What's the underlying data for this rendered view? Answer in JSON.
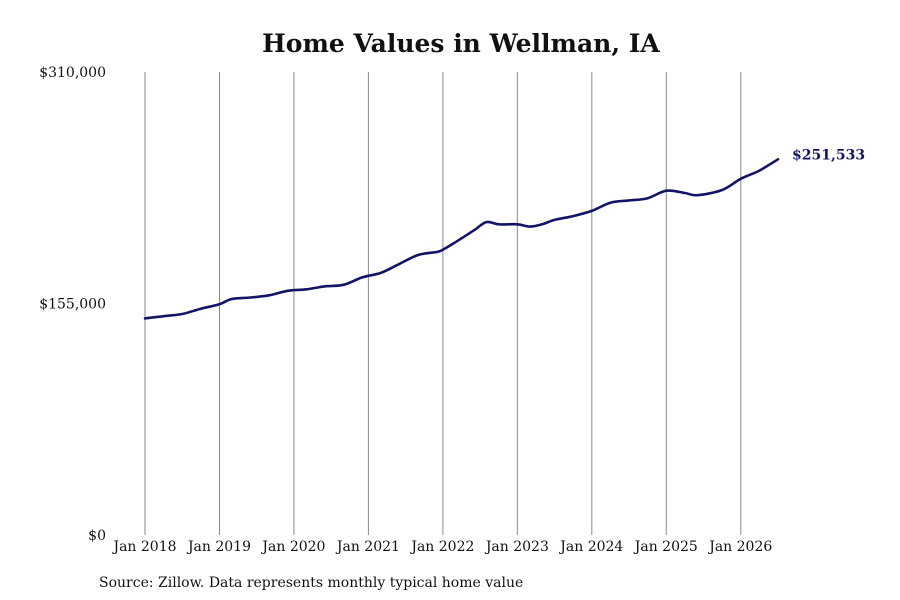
{
  "chart_data": {
    "type": "line",
    "title": "Home Values in Wellman, IA",
    "xlabel": "",
    "ylabel": "",
    "source_note": "Source: Zillow. Data represents monthly typical home value",
    "grid": "vertical",
    "ylim": [
      0,
      310000
    ],
    "xlim": [
      "2018-01",
      "2026-07"
    ],
    "y_ticks": [
      {
        "value": 0,
        "label": "$0"
      },
      {
        "value": 155000,
        "label": "$155,000"
      },
      {
        "value": 310000,
        "label": "$310,000"
      }
    ],
    "x_ticks": [
      {
        "value": "2018-01",
        "label": "Jan 2018"
      },
      {
        "value": "2019-01",
        "label": "Jan 2019"
      },
      {
        "value": "2020-01",
        "label": "Jan 2020"
      },
      {
        "value": "2021-01",
        "label": "Jan 2021"
      },
      {
        "value": "2022-01",
        "label": "Jan 2022"
      },
      {
        "value": "2023-01",
        "label": "Jan 2023"
      },
      {
        "value": "2024-01",
        "label": "Jan 2024"
      },
      {
        "value": "2025-01",
        "label": "Jan 2025"
      },
      {
        "value": "2026-01",
        "label": "Jan 2026"
      }
    ],
    "end_label": "$251,533",
    "colors": {
      "line": "#141466",
      "grid": "#8a8a8a",
      "end_label": "#141466"
    },
    "series": [
      {
        "points": [
          {
            "x": "2018-01",
            "y": 145000
          },
          {
            "x": "2018-04",
            "y": 146500
          },
          {
            "x": "2018-07",
            "y": 148000
          },
          {
            "x": "2018-10",
            "y": 151500
          },
          {
            "x": "2019-01",
            "y": 154500
          },
          {
            "x": "2019-03",
            "y": 158000
          },
          {
            "x": "2019-06",
            "y": 159000
          },
          {
            "x": "2019-09",
            "y": 160500
          },
          {
            "x": "2019-12",
            "y": 163500
          },
          {
            "x": "2020-03",
            "y": 164500
          },
          {
            "x": "2020-06",
            "y": 166500
          },
          {
            "x": "2020-09",
            "y": 167500
          },
          {
            "x": "2020-12",
            "y": 172500
          },
          {
            "x": "2021-03",
            "y": 175500
          },
          {
            "x": "2021-06",
            "y": 181500
          },
          {
            "x": "2021-09",
            "y": 187500
          },
          {
            "x": "2021-12",
            "y": 189500
          },
          {
            "x": "2022-01",
            "y": 191000
          },
          {
            "x": "2022-03",
            "y": 196000
          },
          {
            "x": "2022-06",
            "y": 204000
          },
          {
            "x": "2022-08",
            "y": 209500
          },
          {
            "x": "2022-10",
            "y": 208000
          },
          {
            "x": "2023-01",
            "y": 208000
          },
          {
            "x": "2023-03",
            "y": 206500
          },
          {
            "x": "2023-05",
            "y": 208000
          },
          {
            "x": "2023-07",
            "y": 211000
          },
          {
            "x": "2023-10",
            "y": 213500
          },
          {
            "x": "2024-01",
            "y": 217000
          },
          {
            "x": "2024-04",
            "y": 222500
          },
          {
            "x": "2024-07",
            "y": 224000
          },
          {
            "x": "2024-10",
            "y": 225500
          },
          {
            "x": "2025-01",
            "y": 230500
          },
          {
            "x": "2025-04",
            "y": 229000
          },
          {
            "x": "2025-06",
            "y": 227500
          },
          {
            "x": "2025-10",
            "y": 231000
          },
          {
            "x": "2026-01",
            "y": 238500
          },
          {
            "x": "2026-04",
            "y": 244000
          },
          {
            "x": "2026-07",
            "y": 251533
          }
        ]
      }
    ]
  }
}
